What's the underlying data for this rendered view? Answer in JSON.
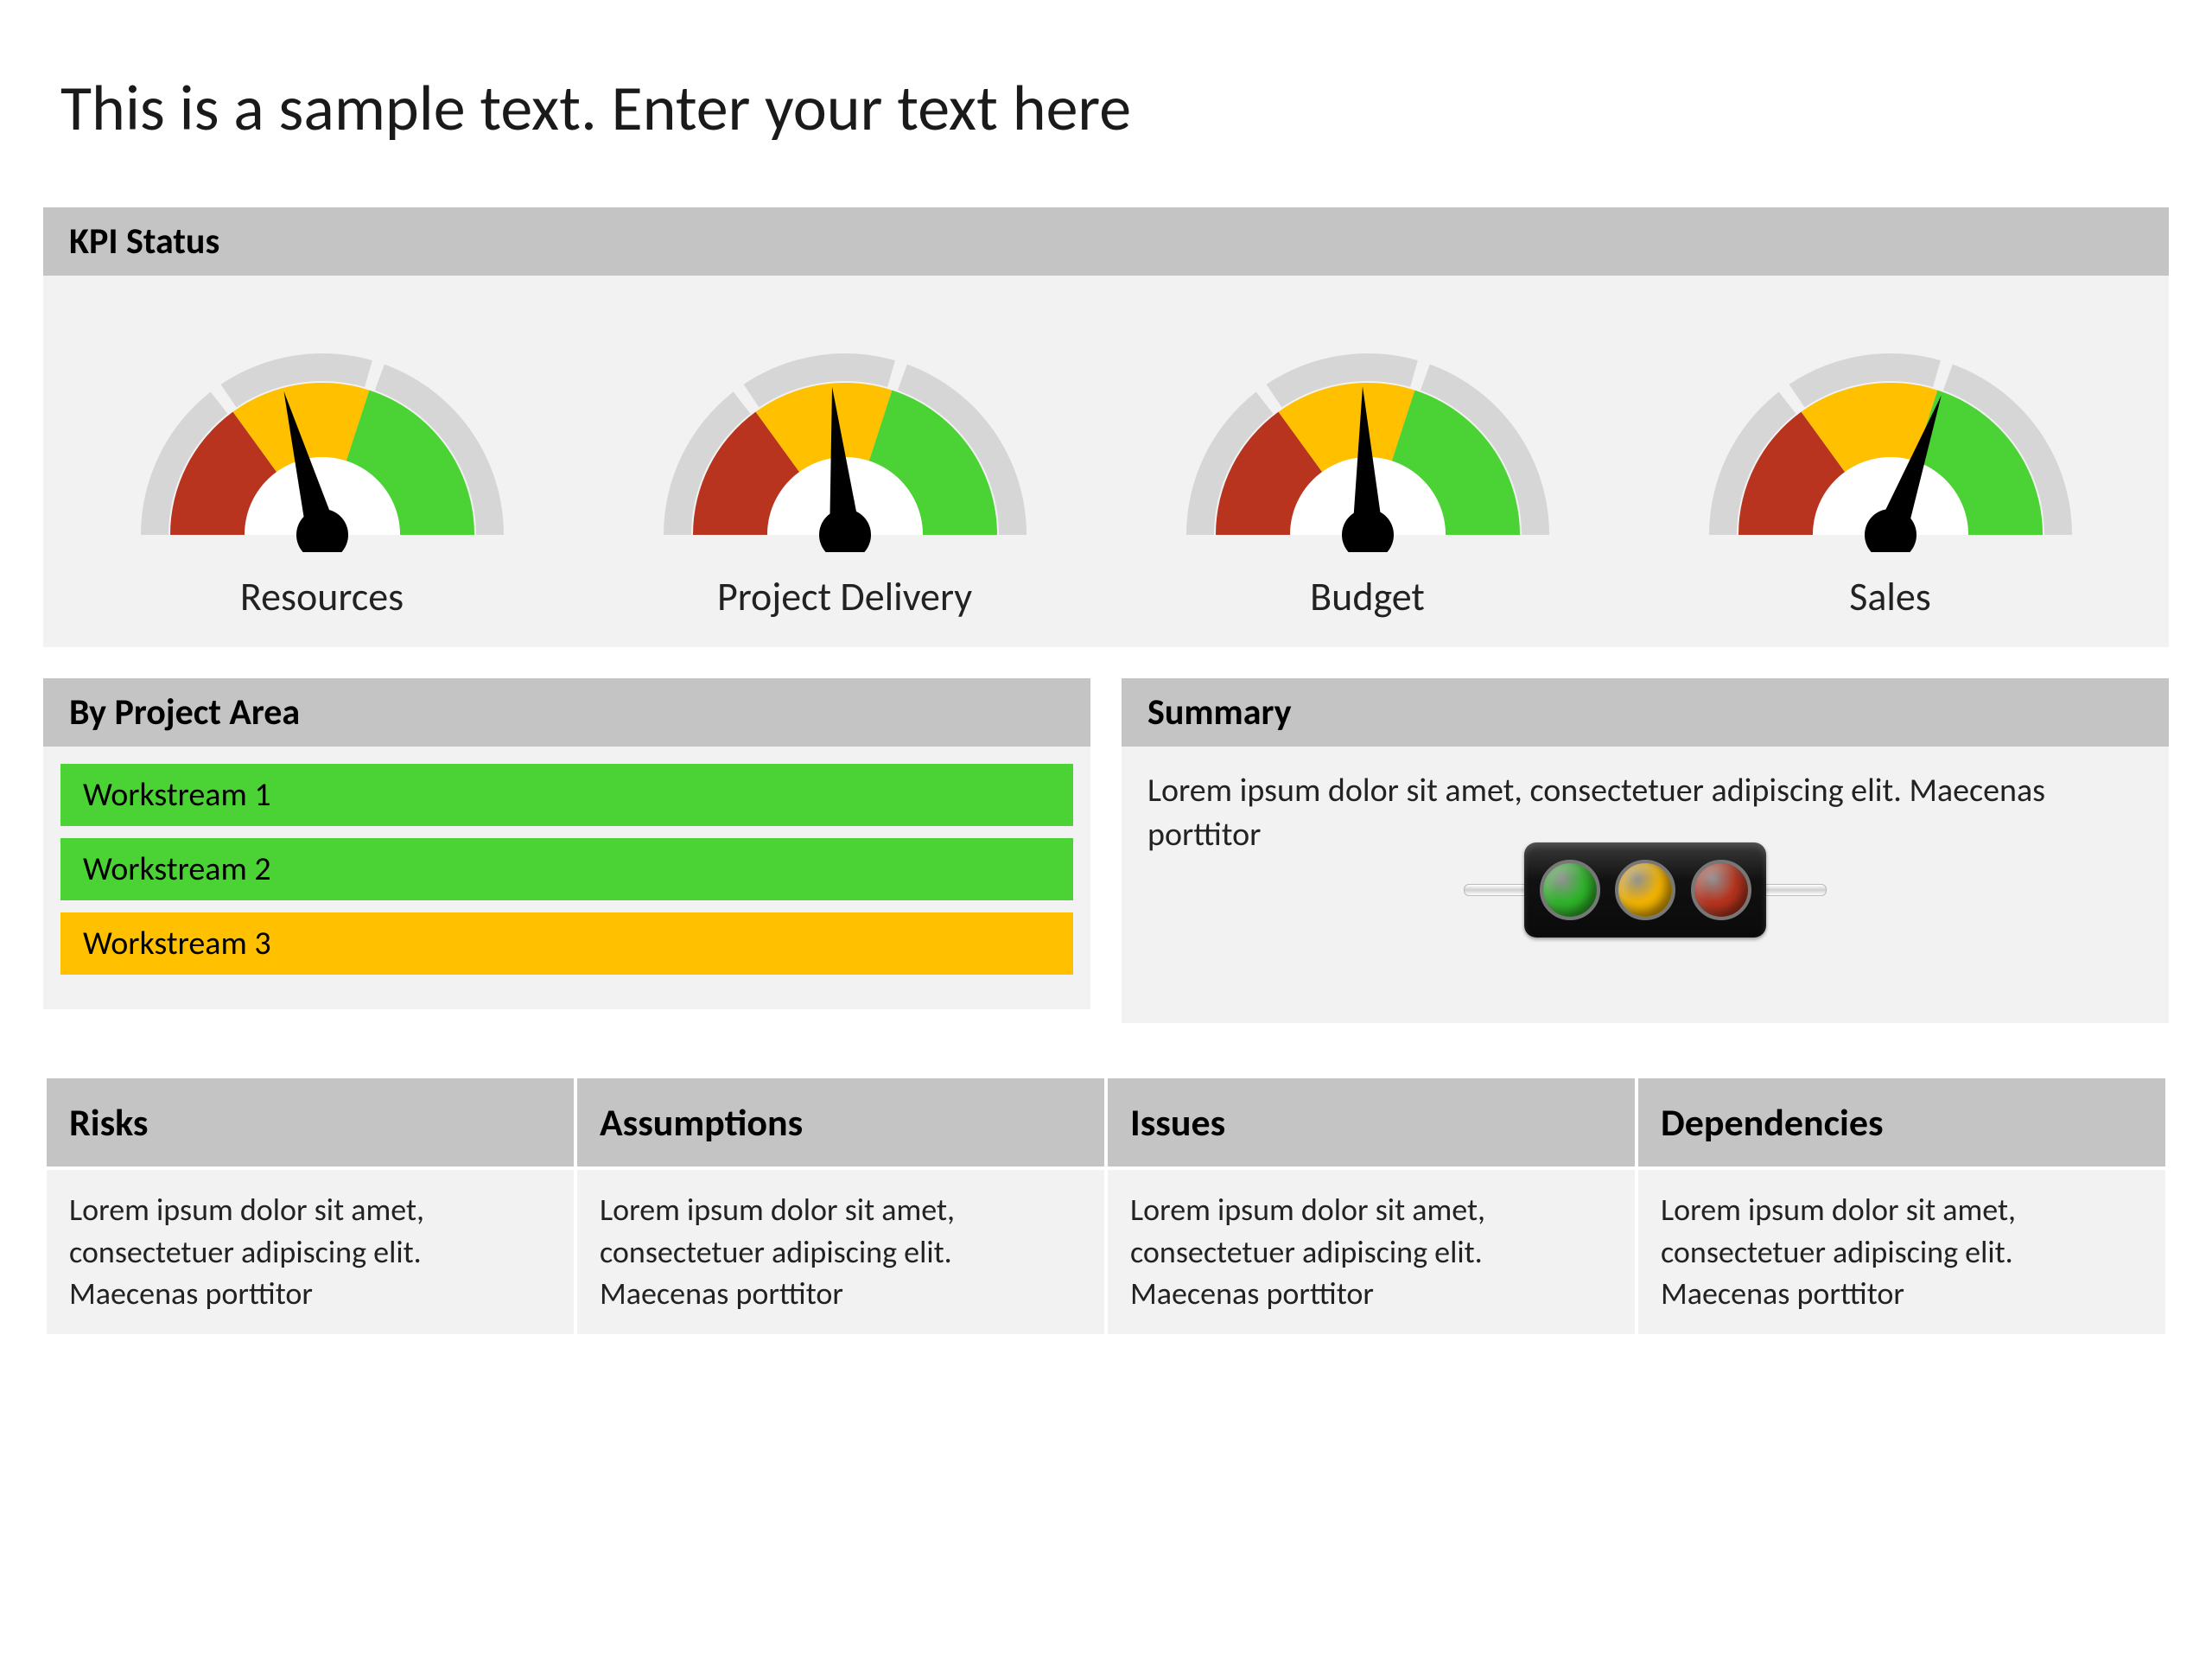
{
  "page": {
    "title": "This is a sample text. Enter your text here",
    "background_color": "#ffffff",
    "header_bg": "#c4c4c4",
    "panel_bg": "#f2f2f2",
    "title_fontsize": 74,
    "section_header_fontsize": 42,
    "body_fontsize": 38
  },
  "kpi": {
    "header": "KPI Status",
    "gauge_style": {
      "type": "semicircle-gauge",
      "outer_ring_color": "#d6d6d6",
      "segments": [
        {
          "name": "red",
          "start_deg": 180,
          "end_deg": 126,
          "color": "#b8341e"
        },
        {
          "name": "yellow",
          "start_deg": 126,
          "end_deg": 72,
          "color": "#ffc000"
        },
        {
          "name": "green",
          "start_deg": 72,
          "end_deg": 0,
          "color": "#4bd234"
        }
      ],
      "hub_color": "#000000",
      "needle_color": "#000000",
      "gap_deg": 2
    },
    "gauges": [
      {
        "label": "Resources",
        "needle_angle_deg": 105
      },
      {
        "label": "Project Delivery",
        "needle_angle_deg": 95
      },
      {
        "label": "Budget",
        "needle_angle_deg": 92
      },
      {
        "label": "Sales",
        "needle_angle_deg": 70
      }
    ]
  },
  "project_area": {
    "header": "By Project Area",
    "bars": [
      {
        "label": "Workstream 1",
        "color": "#4bd234"
      },
      {
        "label": "Workstream 2",
        "color": "#4bd234"
      },
      {
        "label": "Workstream 3",
        "color": "#ffc000"
      }
    ]
  },
  "summary": {
    "header": "Summary",
    "text": "Lorem ipsum dolor sit amet, consectetuer adipiscing elit. Maecenas porttitor",
    "traffic_light": {
      "box_color": "#1a1a1a",
      "ring_color": "#777777",
      "lights": [
        {
          "name": "green",
          "color": "#2fb52a"
        },
        {
          "name": "yellow",
          "color": "#f4b400"
        },
        {
          "name": "red",
          "color": "#b8341e"
        }
      ]
    }
  },
  "raid": {
    "columns": [
      "Risks",
      "Assumptions",
      "Issues",
      "Dependencies"
    ],
    "cells": [
      "Lorem ipsum dolor sit amet, consectetuer adipiscing elit. Maecenas porttitor",
      "Lorem ipsum dolor sit amet, consectetuer adipiscing elit. Maecenas porttitor",
      "Lorem ipsum dolor sit amet, consectetuer adipiscing elit. Maecenas porttitor",
      "Lorem ipsum dolor sit amet, consectetuer adipiscing elit. Maecenas porttitor"
    ]
  }
}
